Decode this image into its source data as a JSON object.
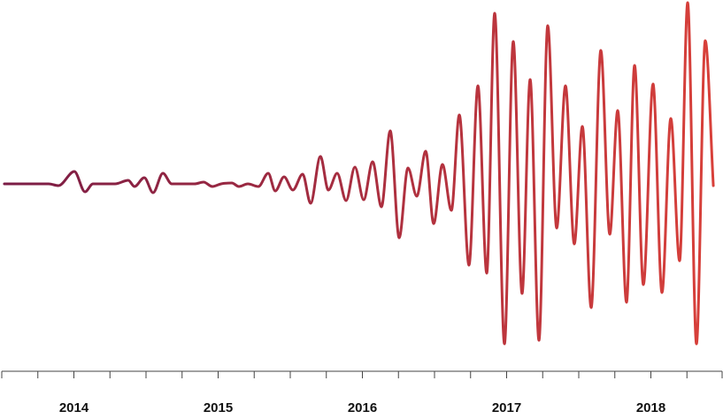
{
  "chart_data": {
    "type": "line",
    "x": [
      2014.018,
      2014.325,
      2014.393,
      2014.503,
      2014.577,
      2014.632,
      2014.785,
      2014.877,
      2014.92,
      2014.988,
      2015.049,
      2015.117,
      2015.178,
      2015.337,
      2015.399,
      2015.46,
      2015.521,
      2015.595,
      2015.644,
      2015.706,
      2015.779,
      2015.847,
      2015.896,
      2015.957,
      2016.018,
      2016.086,
      2016.141,
      2016.209,
      2016.264,
      2016.325,
      2016.387,
      2016.448,
      2016.509,
      2016.571,
      2016.632,
      2016.693,
      2016.755,
      2016.816,
      2016.877,
      2016.939,
      2016.994,
      2017.055,
      2017.117,
      2017.172,
      2017.239,
      2017.301,
      2017.362,
      2017.417,
      2017.485,
      2017.546,
      2017.607,
      2017.663,
      2017.724,
      2017.785,
      2017.847,
      2017.908,
      2017.969,
      2018.025,
      2018.086,
      2018.153,
      2018.215,
      2018.27,
      2018.331,
      2018.387,
      2018.448,
      2018.515,
      2018.577,
      2018.638,
      2018.699,
      2018.755,
      2018.816,
      2018.877,
      2018.933
    ],
    "values": [
      0,
      0,
      -2,
      14,
      -9,
      0,
      0,
      4,
      -3,
      7,
      -10,
      12,
      0,
      0,
      2,
      -3,
      0,
      1,
      -3,
      0,
      -3,
      12,
      -8,
      8,
      -7,
      11,
      -22,
      31,
      -7,
      12,
      -19,
      19,
      -18,
      25,
      -26,
      60,
      -61,
      18,
      -14,
      37,
      -45,
      22,
      -30,
      78,
      -92,
      111,
      -101,
      193,
      -181,
      161,
      -124,
      118,
      -177,
      179,
      -50,
      111,
      -68,
      65,
      -140,
      151,
      -57,
      83,
      -134,
      134,
      -114,
      113,
      -123,
      74,
      -87,
      205,
      -181,
      162,
      -2
    ],
    "gradient": [
      "#7a1c45",
      "#d8403a"
    ],
    "xlim": [
      2014,
      2019
    ],
    "ylim": [
      -208,
      208
    ],
    "xticks": [
      {
        "value": 2014.5,
        "label": "2014"
      },
      {
        "value": 2015.5,
        "label": "2015"
      },
      {
        "value": 2016.5,
        "label": "2016"
      },
      {
        "value": 2017.5,
        "label": "2017"
      },
      {
        "value": 2018.5,
        "label": "2018"
      }
    ],
    "xminorticks": [
      2014,
      2014.25,
      2014.5,
      2014.75,
      2015,
      2015.25,
      2015.5,
      2015.75,
      2016,
      2016.25,
      2016.5,
      2016.75,
      2017,
      2017.25,
      2017.5,
      2017.75,
      2018,
      2018.25,
      2018.5,
      2018.75,
      2019
    ]
  }
}
